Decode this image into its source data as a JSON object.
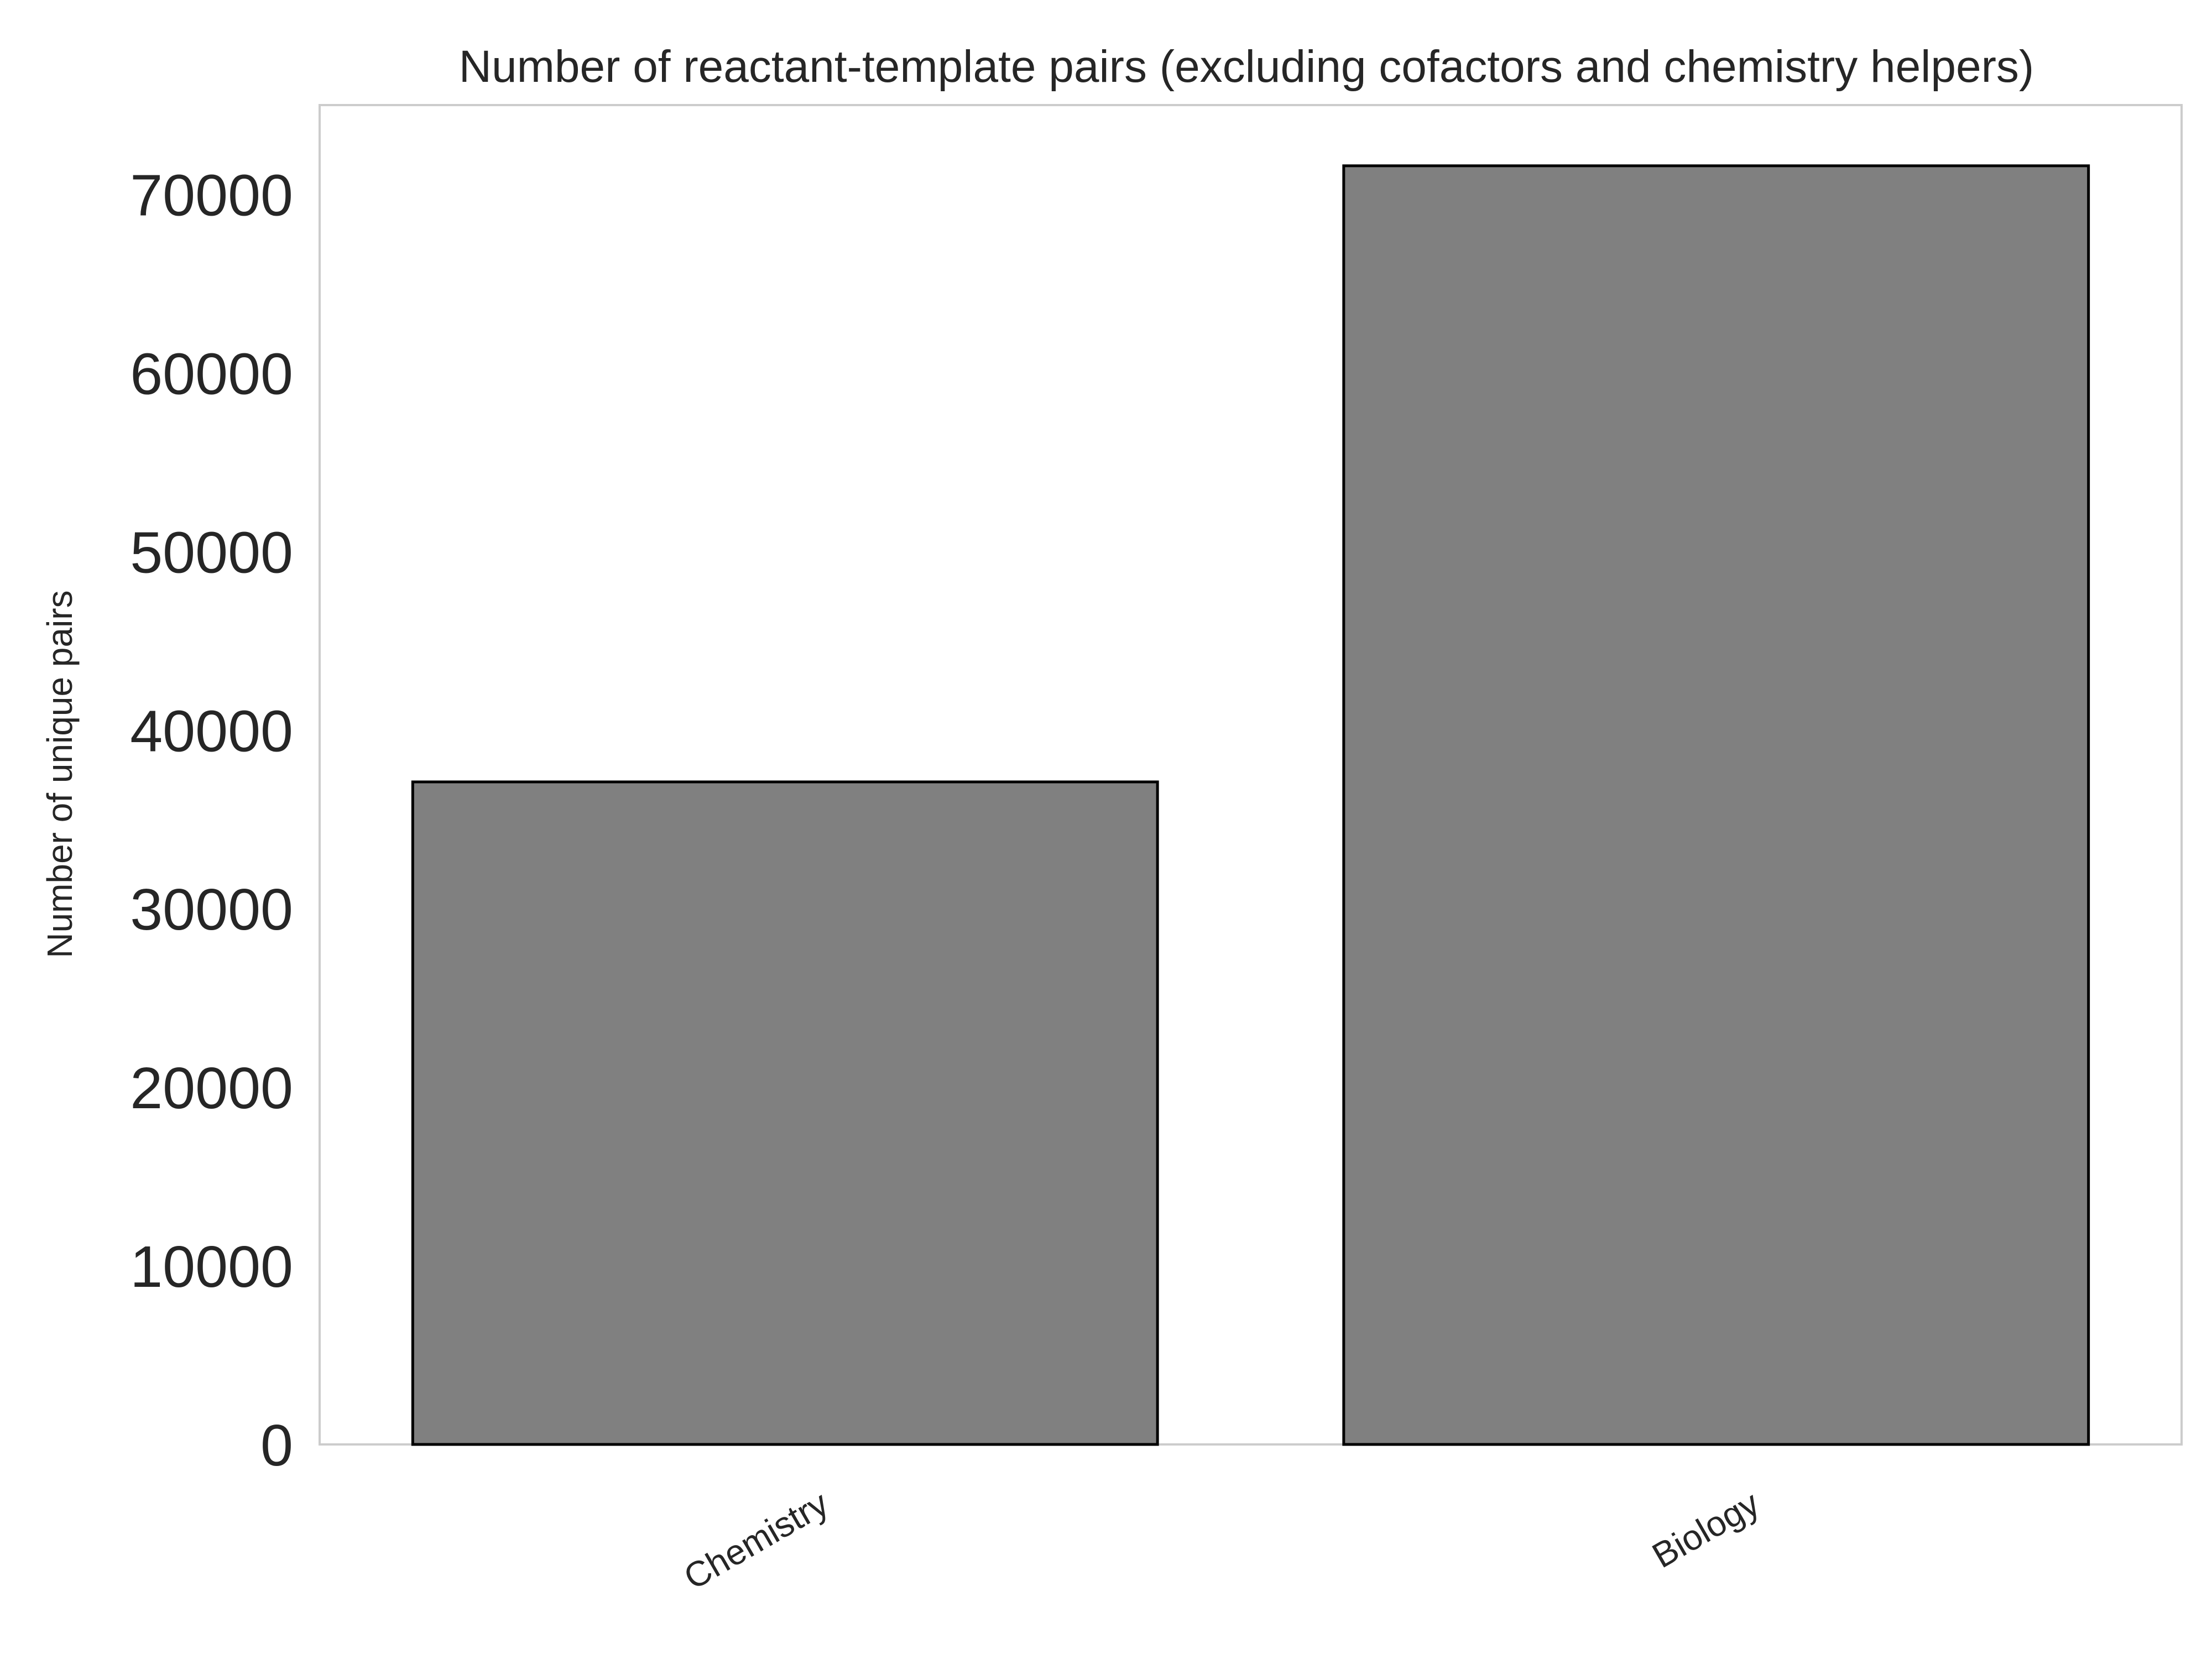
{
  "chart_data": {
    "type": "bar",
    "title": "Number of reactant-template pairs (excluding cofactors and chemistry helpers)",
    "xlabel": "",
    "ylabel": "Number of unique pairs",
    "categories": [
      "Chemistry",
      "Biology"
    ],
    "values": [
      37100,
      71600
    ],
    "ylim": [
      0,
      75000
    ],
    "yticks": [
      0,
      10000,
      20000,
      30000,
      40000,
      50000,
      60000,
      70000
    ],
    "grid": false,
    "legend": "none",
    "colors": {
      "bar_fill": "#808080",
      "bar_edge": "#000000",
      "frame": "#cccccc",
      "text": "#262626"
    }
  }
}
